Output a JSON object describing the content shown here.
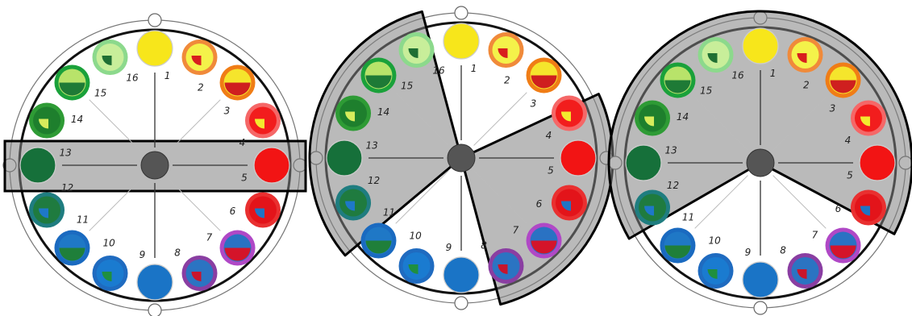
{
  "figure": {
    "panels": [
      {
        "id": "left",
        "highlight": "band",
        "wedges": []
      },
      {
        "id": "middle",
        "highlight": "wedges",
        "wedges": [
          [
            -130,
            -15
          ],
          [
            65,
            165
          ]
        ]
      },
      {
        "id": "right",
        "highlight": "wedges",
        "wedges": [
          [
            -120,
            118
          ]
        ]
      }
    ],
    "positions": [
      {
        "n": "1",
        "fill": "#f7e61b",
        "ring": null,
        "inner": null,
        "inner_type": "none"
      },
      {
        "n": "2",
        "fill": "#f4f24a",
        "ring": "#f08a3a",
        "inner": "#d81e1e",
        "inner_type": "quarter"
      },
      {
        "n": "3",
        "fill": "#f5e52c",
        "ring": "#f07d16",
        "inner": "#cf1f1f",
        "inner_type": "half"
      },
      {
        "n": "4",
        "fill": "#f21d1d",
        "ring": "#f56767",
        "inner": "#f3eb2e",
        "inner_type": "quarter"
      },
      {
        "n": "5",
        "fill": "#f21414",
        "ring": null,
        "inner": null,
        "inner_type": "none"
      },
      {
        "n": "6",
        "fill": "#e3141a",
        "ring": "#e93030",
        "inner": "#1f74c5",
        "inner_type": "quarter"
      },
      {
        "n": "7",
        "fill": "#2a72c3",
        "ring": "#b048c6",
        "inner": "#d4142a",
        "inner_type": "half"
      },
      {
        "n": "8",
        "fill": "#2b74c2",
        "ring": "#8a3ea2",
        "inner": "#c8152c",
        "inner_type": "quarter"
      },
      {
        "n": "9",
        "fill": "#1a74c6",
        "ring": null,
        "inner": null,
        "inner_type": "none"
      },
      {
        "n": "10",
        "fill": "#1a7bd0",
        "ring": "#1f6bc0",
        "inner": "#1f8f3f",
        "inner_type": "quarter"
      },
      {
        "n": "11",
        "fill": "#1f78c6",
        "ring": "#1a6ac0",
        "inner": "#1f7f3a",
        "inner_type": "half"
      },
      {
        "n": "12",
        "fill": "#1f7b3f",
        "ring": "#1f7d80",
        "inner": "#1e78c8",
        "inner_type": "quarter"
      },
      {
        "n": "13",
        "fill": "#16703a",
        "ring": null,
        "inner": null,
        "inner_type": "none"
      },
      {
        "n": "14",
        "fill": "#1e7f2d",
        "ring": "#2e9b35",
        "inner": "#d7ec5c",
        "inner_type": "quarter"
      },
      {
        "n": "15",
        "fill": "#b8e36a",
        "ring": "#1aa13a",
        "inner": "#1e7a36",
        "inner_type": "half"
      },
      {
        "n": "16",
        "fill": "#c8ee9a",
        "ring": "#8cd98c",
        "inner": "#1f6f33",
        "inner_type": "quarter"
      }
    ]
  }
}
